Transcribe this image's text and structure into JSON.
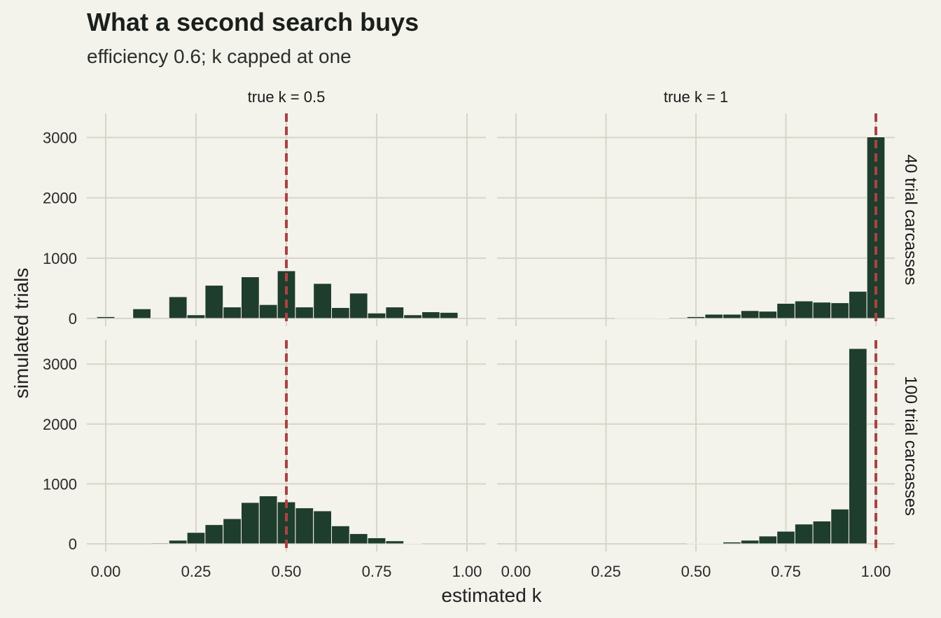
{
  "chart_data": {
    "type": "bar",
    "title": "What a second search buys",
    "subtitle": "efficiency 0.6; k capped at one",
    "xlabel": "estimated k",
    "ylabel": "simulated trials",
    "xlim": [
      0,
      1
    ],
    "ylim": [
      0,
      3400
    ],
    "x_ticks": [
      "0.00",
      "0.25",
      "0.50",
      "0.75",
      "1.00"
    ],
    "x_tick_values": [
      0,
      0.25,
      0.5,
      0.75,
      1.0
    ],
    "y_ticks": [
      "0",
      "1000",
      "2000",
      "3000"
    ],
    "y_tick_values": [
      0,
      1000,
      2000,
      3000
    ],
    "bin_width": 0.05,
    "bar_color": "#1f3d2d",
    "reference_line_color": "#a94343",
    "background": "#f3f2eb",
    "grid": true,
    "columns": [
      "true k = 0.5",
      "true k = 1"
    ],
    "column_true_k": [
      0.5,
      1.0
    ],
    "rows": [
      "40 trial carcasses",
      "100 trial carcasses"
    ],
    "panels": [
      {
        "column": "true k = 0.5",
        "row": "40 trial carcasses",
        "true_k": 0.5,
        "bin_centers": [
          0.0,
          0.05,
          0.1,
          0.15,
          0.2,
          0.25,
          0.3,
          0.35,
          0.4,
          0.45,
          0.5,
          0.55,
          0.6,
          0.65,
          0.7,
          0.75,
          0.8,
          0.85,
          0.9,
          0.95,
          1.0
        ],
        "counts": [
          30,
          0,
          160,
          0,
          360,
          60,
          550,
          190,
          690,
          230,
          790,
          190,
          580,
          180,
          420,
          90,
          190,
          60,
          110,
          100,
          0
        ]
      },
      {
        "column": "true k = 1",
        "row": "40 trial carcasses",
        "true_k": 1.0,
        "bin_centers": [
          0.0,
          0.05,
          0.1,
          0.15,
          0.2,
          0.25,
          0.3,
          0.35,
          0.4,
          0.45,
          0.5,
          0.55,
          0.6,
          0.65,
          0.7,
          0.75,
          0.8,
          0.85,
          0.9,
          0.95,
          1.0
        ],
        "counts": [
          0,
          0,
          0,
          0,
          0,
          0,
          5,
          5,
          10,
          15,
          30,
          70,
          70,
          130,
          120,
          250,
          290,
          270,
          260,
          450,
          3010
        ]
      },
      {
        "column": "true k = 0.5",
        "row": "100 trial carcasses",
        "true_k": 0.5,
        "bin_centers": [
          0.0,
          0.05,
          0.1,
          0.15,
          0.2,
          0.25,
          0.3,
          0.35,
          0.4,
          0.45,
          0.5,
          0.55,
          0.6,
          0.65,
          0.7,
          0.75,
          0.8,
          0.85,
          0.9,
          0.95,
          1.0
        ],
        "counts": [
          0,
          0,
          0,
          15,
          60,
          190,
          320,
          420,
          690,
          800,
          700,
          600,
          550,
          300,
          170,
          100,
          50,
          10,
          0,
          0,
          0
        ]
      },
      {
        "column": "true k = 1",
        "row": "100 trial carcasses",
        "true_k": 1.0,
        "bin_centers": [
          0.0,
          0.05,
          0.1,
          0.15,
          0.2,
          0.25,
          0.3,
          0.35,
          0.4,
          0.45,
          0.5,
          0.55,
          0.6,
          0.65,
          0.7,
          0.75,
          0.8,
          0.85,
          0.9,
          0.95,
          1.0
        ],
        "counts": [
          0,
          0,
          0,
          0,
          0,
          0,
          0,
          0,
          0,
          0,
          5,
          5,
          30,
          60,
          130,
          210,
          330,
          380,
          580,
          3260,
          0
        ]
      }
    ]
  }
}
